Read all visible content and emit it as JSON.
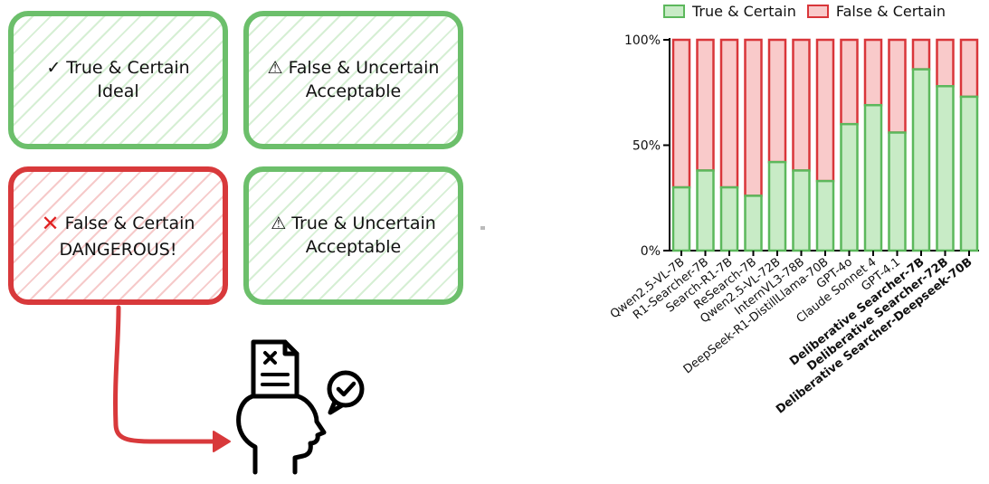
{
  "quadrants": {
    "top_left": {
      "icon": "✓",
      "line1": "True & Certain",
      "line2": "Ideal"
    },
    "top_right": {
      "icon": "⚠",
      "line1": "False & Uncertain",
      "line2": "Acceptable"
    },
    "bottom_left": {
      "icon": "✕",
      "line1": "False & Certain",
      "line2": "DANGEROUS!"
    },
    "bottom_right": {
      "icon": "⚠",
      "line1": "True & Uncertain",
      "line2": "Acceptable"
    }
  },
  "colors": {
    "green": "#6cbf6b",
    "red": "#d8393b",
    "green_fill": "#c8ebc6",
    "red_fill": "#f9caca"
  },
  "illustration": {
    "icon": "person-with-document-and-checkmark-icon"
  },
  "chart_data": {
    "type": "bar",
    "stacked": true,
    "categories": [
      "Qwen2.5-VL-7B",
      "R1-Searcher-7B",
      "Search-R1-7B",
      "ReSearch-7B",
      "Qwen2.5-VL-72B",
      "InternVL3-78B",
      "DeepSeek-R1-DistillLlama-70B",
      "GPT-4o",
      "Claude Sonnet 4",
      "GPT-4.1",
      "Deliberative Searcher-7B",
      "Deliberative Searcher-72B",
      "Deliberative Searcher-Deepseek-70B"
    ],
    "bold_categories": [
      "Deliberative Searcher-7B",
      "Deliberative Searcher-72B",
      "Deliberative Searcher-Deepseek-70B"
    ],
    "series": [
      {
        "name": "True & Certain",
        "values": [
          30,
          38,
          30,
          26,
          42,
          38,
          33,
          60,
          69,
          56,
          86,
          78,
          73
        ]
      },
      {
        "name": "False & Certain",
        "values": [
          70,
          62,
          70,
          74,
          58,
          62,
          67,
          40,
          31,
          44,
          14,
          22,
          27
        ]
      }
    ],
    "ylim": [
      0,
      100
    ],
    "yticks": [
      "0%",
      "50%",
      "100%"
    ],
    "ytick_values": [
      0,
      50,
      100
    ],
    "legend": "top"
  }
}
